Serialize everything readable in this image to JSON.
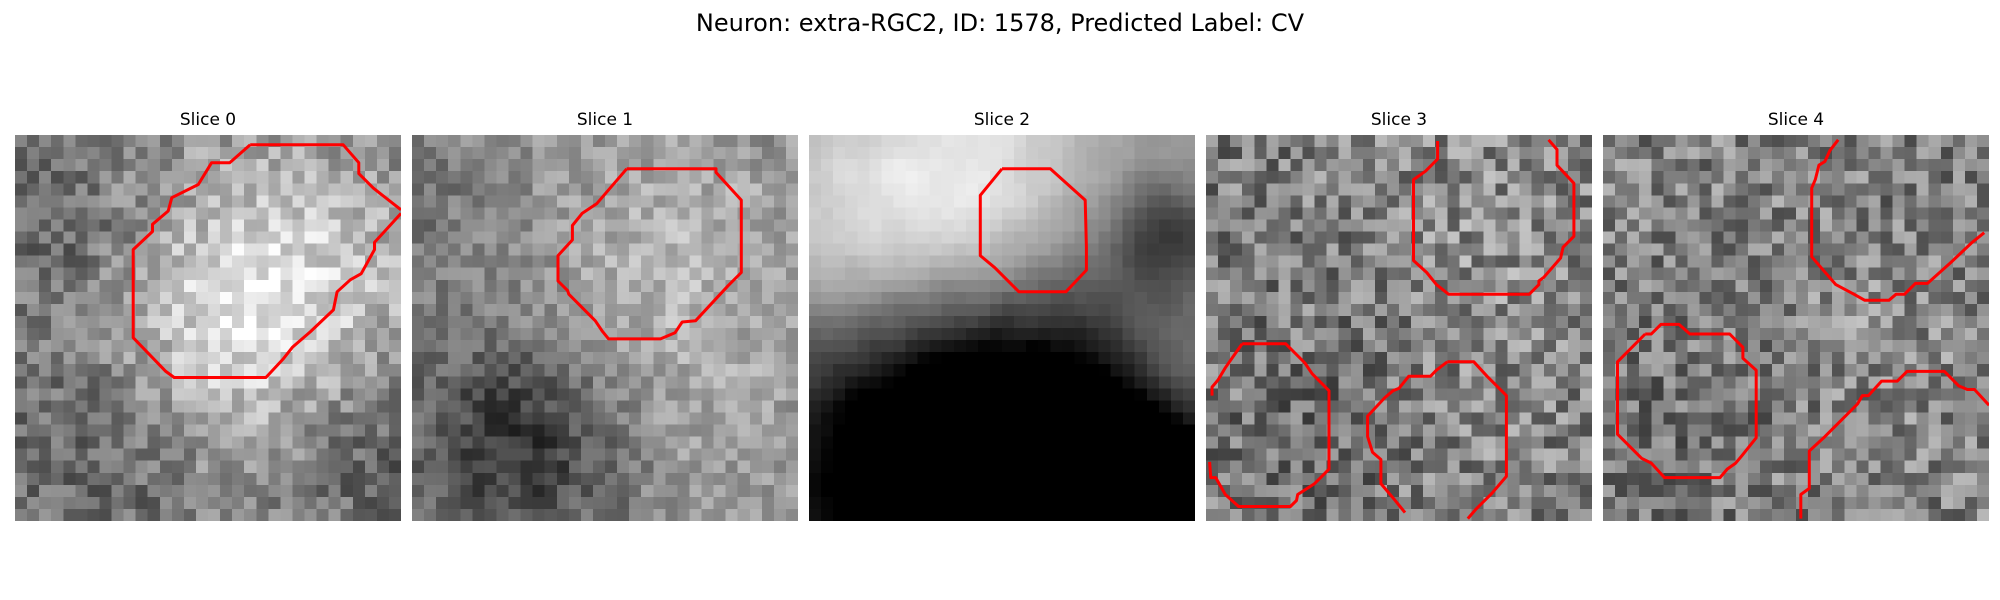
{
  "figure": {
    "title": "Neuron: extra-RGC2, ID: 1578, Predicted Label: CV"
  },
  "colors": {
    "contour": "#ff0000",
    "background": "#ffffff"
  },
  "panels": [
    {
      "title": "Slice 0",
      "image": "grayscale-em-slice-with-red-contours"
    },
    {
      "title": "Slice 1",
      "image": "grayscale-em-slice-with-red-contours"
    },
    {
      "title": "Slice 2",
      "image": "grayscale-em-slice-with-red-contour"
    },
    {
      "title": "Slice 3",
      "image": "grayscale-em-slice-with-red-contours"
    },
    {
      "title": "Slice 4",
      "image": "grayscale-em-slice-with-red-contours"
    }
  ]
}
